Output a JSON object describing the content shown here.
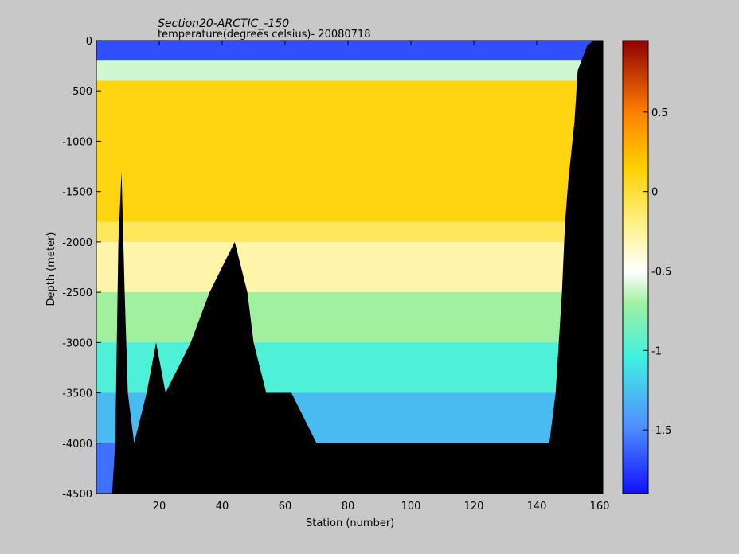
{
  "chart_data": {
    "type": "heatmap",
    "title": "Section20-ARCTIC_-150",
    "subtitle": "temperature(degrees  celsius)- 20080718",
    "xlabel": "Station (number)",
    "ylabel": "Depth (meter)",
    "xlim": [
      0,
      161
    ],
    "ylim": [
      -4500,
      0
    ],
    "xticks": [
      20,
      40,
      60,
      80,
      100,
      120,
      140,
      160
    ],
    "yticks": [
      0,
      -500,
      -1000,
      -1500,
      -2000,
      -2500,
      -3000,
      -3500,
      -4000,
      -4500
    ],
    "colorbar": {
      "clim": [
        -1.9,
        0.95
      ],
      "ticks": [
        0.5,
        0,
        -0.5,
        -1,
        -1.5
      ],
      "colormap": "jet-like (blue-cyan-green-white-yellow-orange-red)"
    },
    "depth_layers_m": [
      {
        "from": 0,
        "to": -200,
        "temperature_c": -1.7
      },
      {
        "from": -200,
        "to": -400,
        "temperature_c": -0.6
      },
      {
        "from": -400,
        "to": -1800,
        "temperature_c": 0.1
      },
      {
        "from": -1800,
        "to": -2000,
        "temperature_c": -0.1
      },
      {
        "from": -2000,
        "to": -2500,
        "temperature_c": -0.3
      },
      {
        "from": -2500,
        "to": -3000,
        "temperature_c": -0.7
      },
      {
        "from": -3000,
        "to": -3500,
        "temperature_c": -1.0
      },
      {
        "from": -3500,
        "to": -4000,
        "temperature_c": -1.3
      },
      {
        "from": -4000,
        "to": -4500,
        "temperature_c": -1.6
      }
    ],
    "bottom_depth_m": [
      {
        "station": 1,
        "depth": -4500
      },
      {
        "station": 5,
        "depth": -4500
      },
      {
        "station": 6,
        "depth": -4000
      },
      {
        "station": 7,
        "depth": -2000
      },
      {
        "station": 8,
        "depth": -1300
      },
      {
        "station": 9,
        "depth": -2500
      },
      {
        "station": 10,
        "depth": -3500
      },
      {
        "station": 12,
        "depth": -4000
      },
      {
        "station": 16,
        "depth": -3500
      },
      {
        "station": 19,
        "depth": -3000
      },
      {
        "station": 22,
        "depth": -3500
      },
      {
        "station": 30,
        "depth": -3000
      },
      {
        "station": 36,
        "depth": -2500
      },
      {
        "station": 44,
        "depth": -2000
      },
      {
        "station": 48,
        "depth": -2500
      },
      {
        "station": 50,
        "depth": -3000
      },
      {
        "station": 54,
        "depth": -3500
      },
      {
        "station": 62,
        "depth": -3500
      },
      {
        "station": 70,
        "depth": -4000
      },
      {
        "station": 144,
        "depth": -4000
      },
      {
        "station": 146,
        "depth": -3500
      },
      {
        "station": 147,
        "depth": -3000
      },
      {
        "station": 148,
        "depth": -2500
      },
      {
        "station": 149,
        "depth": -1800
      },
      {
        "station": 150,
        "depth": -1400
      },
      {
        "station": 152,
        "depth": -800
      },
      {
        "station": 153,
        "depth": -300
      },
      {
        "station": 156,
        "depth": -50
      },
      {
        "station": 158,
        "depth": 0
      }
    ]
  }
}
